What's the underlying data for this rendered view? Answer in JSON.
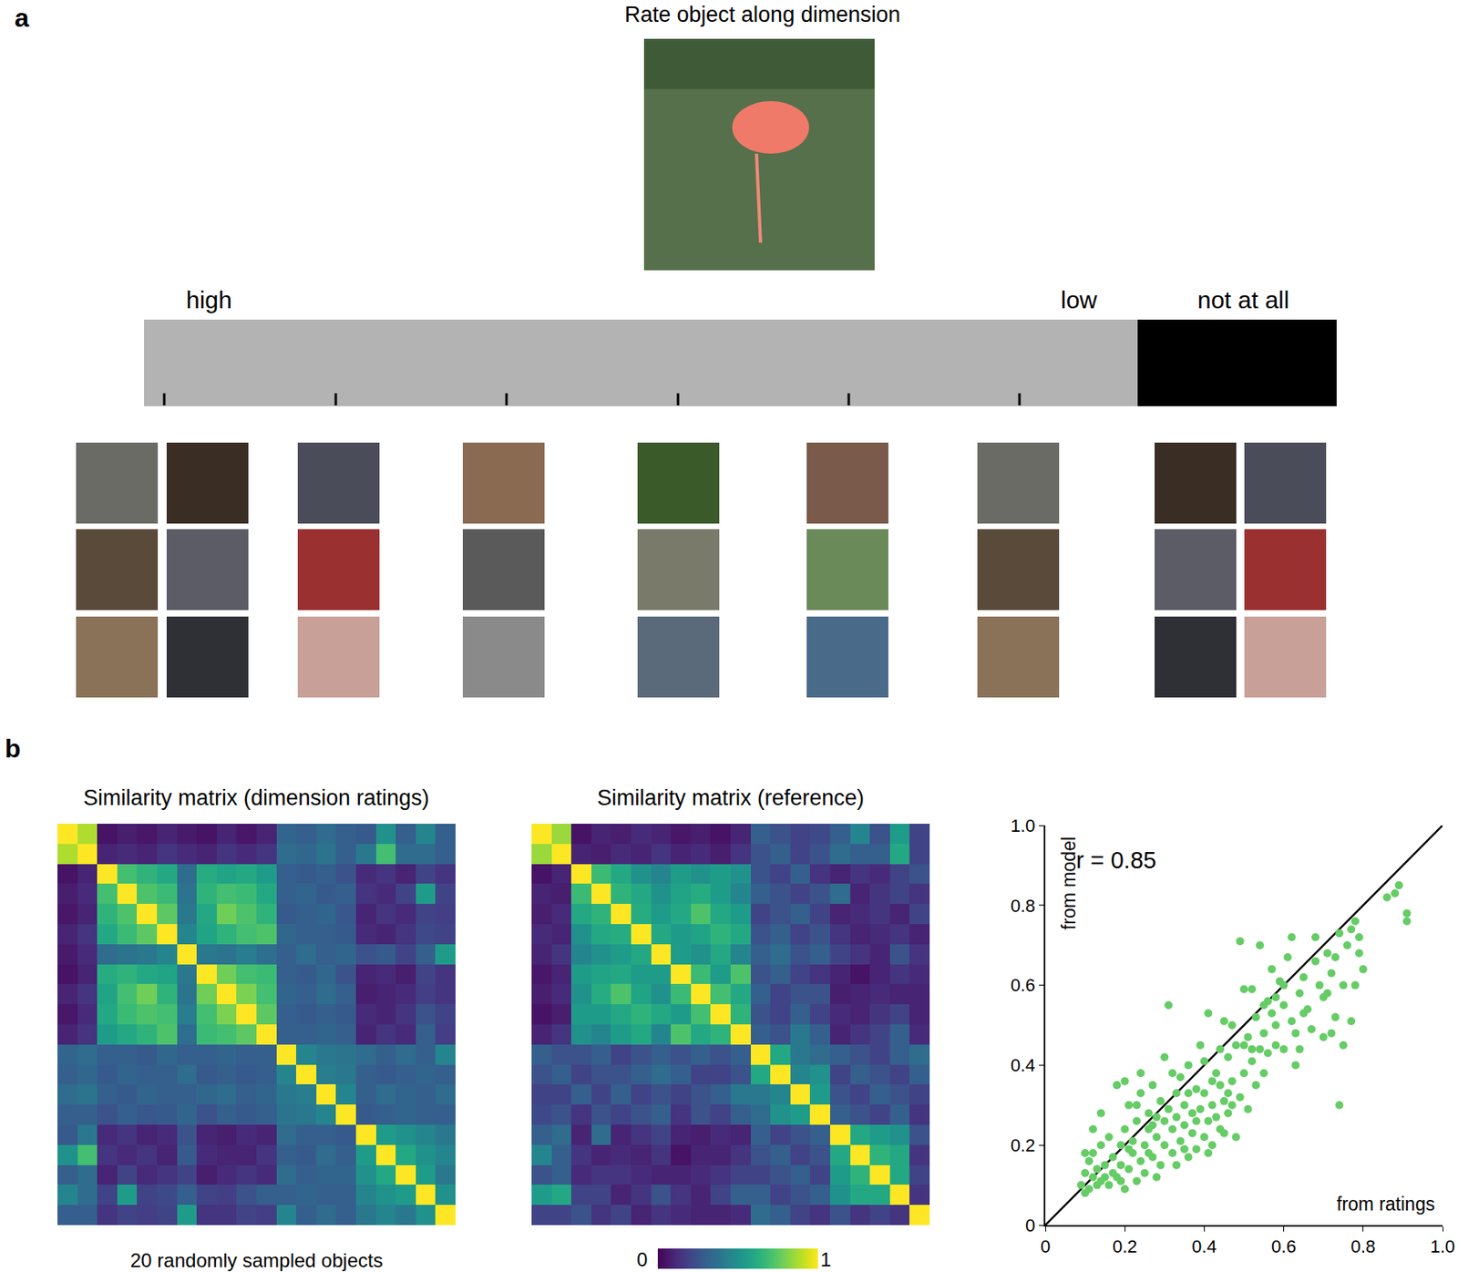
{
  "panel_labels": [
    "a",
    "b"
  ],
  "rating_panel": {
    "title": "Rate object along dimension",
    "scale_labels": [
      "high",
      "low",
      "not at all"
    ]
  },
  "chart_data": [
    {
      "type": "heatmap",
      "title": "Similarity matrix (dimension ratings)",
      "xlabel": "20 randomly sampled objects",
      "tick_labels": false,
      "cells": [
        [
          1,
          0.88,
          0.05,
          0.08,
          0.06,
          0.1,
          0.07,
          0.05,
          0.1,
          0.06,
          0.1,
          0.32,
          0.3,
          0.35,
          0.3,
          0.28,
          0.5,
          0.3,
          0.45,
          0.3
        ],
        [
          0.88,
          1,
          0.1,
          0.12,
          0.1,
          0.15,
          0.12,
          0.1,
          0.15,
          0.12,
          0.15,
          0.35,
          0.33,
          0.38,
          0.3,
          0.4,
          0.7,
          0.35,
          0.35,
          0.3
        ],
        [
          0.05,
          0.1,
          1,
          0.7,
          0.65,
          0.6,
          0.35,
          0.62,
          0.58,
          0.6,
          0.55,
          0.3,
          0.28,
          0.3,
          0.25,
          0.12,
          0.15,
          0.1,
          0.2,
          0.15
        ],
        [
          0.08,
          0.12,
          0.7,
          1,
          0.72,
          0.68,
          0.38,
          0.65,
          0.7,
          0.68,
          0.6,
          0.3,
          0.32,
          0.28,
          0.3,
          0.15,
          0.12,
          0.2,
          0.55,
          0.2
        ],
        [
          0.06,
          0.1,
          0.65,
          0.72,
          1,
          0.75,
          0.4,
          0.6,
          0.78,
          0.72,
          0.65,
          0.28,
          0.3,
          0.32,
          0.27,
          0.1,
          0.15,
          0.12,
          0.2,
          0.18
        ],
        [
          0.1,
          0.15,
          0.6,
          0.68,
          0.75,
          1,
          0.45,
          0.58,
          0.65,
          0.7,
          0.72,
          0.33,
          0.3,
          0.3,
          0.28,
          0.12,
          0.1,
          0.15,
          0.22,
          0.2
        ],
        [
          0.07,
          0.12,
          0.35,
          0.38,
          0.4,
          0.45,
          1,
          0.4,
          0.38,
          0.42,
          0.36,
          0.3,
          0.35,
          0.3,
          0.32,
          0.25,
          0.28,
          0.2,
          0.3,
          0.55
        ],
        [
          0.05,
          0.1,
          0.62,
          0.65,
          0.6,
          0.58,
          0.4,
          1,
          0.78,
          0.7,
          0.68,
          0.3,
          0.28,
          0.33,
          0.25,
          0.1,
          0.12,
          0.08,
          0.2,
          0.15
        ],
        [
          0.1,
          0.15,
          0.58,
          0.7,
          0.78,
          0.65,
          0.38,
          0.78,
          1,
          0.8,
          0.7,
          0.32,
          0.3,
          0.35,
          0.3,
          0.08,
          0.1,
          0.12,
          0.18,
          0.15
        ],
        [
          0.06,
          0.12,
          0.6,
          0.68,
          0.72,
          0.7,
          0.42,
          0.7,
          0.8,
          1,
          0.75,
          0.3,
          0.28,
          0.3,
          0.28,
          0.12,
          0.1,
          0.15,
          0.25,
          0.2
        ],
        [
          0.1,
          0.15,
          0.55,
          0.6,
          0.65,
          0.72,
          0.36,
          0.68,
          0.7,
          0.75,
          1,
          0.3,
          0.3,
          0.32,
          0.3,
          0.1,
          0.15,
          0.12,
          0.3,
          0.18
        ],
        [
          0.32,
          0.35,
          0.3,
          0.3,
          0.28,
          0.33,
          0.3,
          0.3,
          0.32,
          0.3,
          0.3,
          1,
          0.45,
          0.4,
          0.38,
          0.35,
          0.3,
          0.35,
          0.3,
          0.45
        ],
        [
          0.3,
          0.33,
          0.28,
          0.32,
          0.3,
          0.3,
          0.35,
          0.28,
          0.3,
          0.28,
          0.3,
          0.45,
          1,
          0.42,
          0.4,
          0.3,
          0.28,
          0.3,
          0.32,
          0.3
        ],
        [
          0.35,
          0.38,
          0.3,
          0.28,
          0.32,
          0.3,
          0.3,
          0.33,
          0.35,
          0.3,
          0.32,
          0.4,
          0.42,
          1,
          0.45,
          0.3,
          0.35,
          0.32,
          0.3,
          0.35
        ],
        [
          0.3,
          0.3,
          0.25,
          0.3,
          0.27,
          0.28,
          0.32,
          0.25,
          0.3,
          0.28,
          0.3,
          0.38,
          0.4,
          0.45,
          1,
          0.28,
          0.3,
          0.32,
          0.3,
          0.3
        ],
        [
          0.28,
          0.4,
          0.12,
          0.15,
          0.1,
          0.12,
          0.25,
          0.1,
          0.08,
          0.12,
          0.1,
          0.35,
          0.3,
          0.3,
          0.28,
          1,
          0.55,
          0.5,
          0.45,
          0.4
        ],
        [
          0.5,
          0.7,
          0.15,
          0.12,
          0.15,
          0.1,
          0.28,
          0.12,
          0.1,
          0.1,
          0.15,
          0.3,
          0.28,
          0.35,
          0.3,
          0.55,
          1,
          0.6,
          0.5,
          0.45
        ],
        [
          0.3,
          0.35,
          0.1,
          0.2,
          0.12,
          0.15,
          0.2,
          0.08,
          0.12,
          0.15,
          0.12,
          0.35,
          0.3,
          0.32,
          0.32,
          0.5,
          0.6,
          1,
          0.55,
          0.4
        ],
        [
          0.45,
          0.35,
          0.2,
          0.55,
          0.2,
          0.22,
          0.3,
          0.2,
          0.18,
          0.25,
          0.3,
          0.3,
          0.32,
          0.3,
          0.3,
          0.45,
          0.5,
          0.55,
          1,
          0.5
        ],
        [
          0.3,
          0.3,
          0.15,
          0.2,
          0.18,
          0.2,
          0.55,
          0.15,
          0.15,
          0.2,
          0.18,
          0.45,
          0.3,
          0.35,
          0.3,
          0.4,
          0.45,
          0.4,
          0.5,
          1
        ]
      ]
    },
    {
      "type": "heatmap",
      "title": "Similarity matrix (reference)",
      "tick_labels": false,
      "colorbar_range": [
        0,
        1
      ],
      "colorbar_ticks": [
        0,
        1
      ],
      "cells": [
        [
          1,
          0.85,
          0.05,
          0.1,
          0.08,
          0.12,
          0.1,
          0.06,
          0.08,
          0.05,
          0.1,
          0.3,
          0.25,
          0.2,
          0.22,
          0.3,
          0.45,
          0.25,
          0.55,
          0.2
        ],
        [
          0.85,
          1,
          0.1,
          0.08,
          0.12,
          0.1,
          0.15,
          0.1,
          0.12,
          0.08,
          0.15,
          0.25,
          0.3,
          0.2,
          0.25,
          0.35,
          0.3,
          0.3,
          0.6,
          0.2
        ],
        [
          0.05,
          0.1,
          1,
          0.68,
          0.6,
          0.5,
          0.45,
          0.55,
          0.5,
          0.55,
          0.5,
          0.25,
          0.2,
          0.3,
          0.15,
          0.1,
          0.15,
          0.12,
          0.2,
          0.25
        ],
        [
          0.1,
          0.08,
          0.68,
          1,
          0.65,
          0.6,
          0.5,
          0.58,
          0.62,
          0.55,
          0.45,
          0.3,
          0.25,
          0.2,
          0.25,
          0.35,
          0.1,
          0.15,
          0.2,
          0.15
        ],
        [
          0.08,
          0.12,
          0.6,
          0.65,
          1,
          0.62,
          0.55,
          0.6,
          0.72,
          0.6,
          0.55,
          0.2,
          0.25,
          0.3,
          0.2,
          0.1,
          0.12,
          0.15,
          0.1,
          0.2
        ],
        [
          0.12,
          0.1,
          0.5,
          0.6,
          0.62,
          1,
          0.6,
          0.55,
          0.58,
          0.65,
          0.6,
          0.25,
          0.3,
          0.2,
          0.25,
          0.15,
          0.1,
          0.12,
          0.15,
          0.1
        ],
        [
          0.1,
          0.15,
          0.45,
          0.5,
          0.55,
          0.6,
          1,
          0.55,
          0.5,
          0.6,
          0.45,
          0.3,
          0.35,
          0.25,
          0.3,
          0.2,
          0.15,
          0.1,
          0.25,
          0.15
        ],
        [
          0.06,
          0.1,
          0.55,
          0.58,
          0.6,
          0.55,
          0.55,
          1,
          0.68,
          0.55,
          0.72,
          0.25,
          0.3,
          0.2,
          0.15,
          0.1,
          0.05,
          0.1,
          0.15,
          0.12
        ],
        [
          0.08,
          0.12,
          0.5,
          0.62,
          0.72,
          0.58,
          0.5,
          0.68,
          1,
          0.7,
          0.6,
          0.3,
          0.2,
          0.25,
          0.25,
          0.08,
          0.1,
          0.12,
          0.1,
          0.1
        ],
        [
          0.05,
          0.08,
          0.55,
          0.55,
          0.6,
          0.65,
          0.6,
          0.55,
          0.7,
          1,
          0.65,
          0.25,
          0.2,
          0.3,
          0.2,
          0.12,
          0.1,
          0.15,
          0.2,
          0.1
        ],
        [
          0.1,
          0.15,
          0.5,
          0.45,
          0.55,
          0.6,
          0.45,
          0.72,
          0.6,
          0.65,
          1,
          0.3,
          0.25,
          0.4,
          0.3,
          0.1,
          0.15,
          0.2,
          0.3,
          0.12
        ],
        [
          0.3,
          0.25,
          0.25,
          0.3,
          0.2,
          0.25,
          0.3,
          0.25,
          0.3,
          0.25,
          0.3,
          1,
          0.6,
          0.4,
          0.35,
          0.3,
          0.25,
          0.2,
          0.3,
          0.35
        ],
        [
          0.25,
          0.3,
          0.2,
          0.25,
          0.25,
          0.3,
          0.35,
          0.3,
          0.2,
          0.2,
          0.25,
          0.6,
          1,
          0.45,
          0.5,
          0.2,
          0.3,
          0.25,
          0.2,
          0.3
        ],
        [
          0.2,
          0.2,
          0.3,
          0.2,
          0.3,
          0.2,
          0.25,
          0.2,
          0.25,
          0.3,
          0.4,
          0.4,
          0.45,
          1,
          0.55,
          0.25,
          0.2,
          0.3,
          0.25,
          0.2
        ],
        [
          0.22,
          0.25,
          0.15,
          0.25,
          0.2,
          0.25,
          0.3,
          0.15,
          0.25,
          0.2,
          0.3,
          0.35,
          0.5,
          0.55,
          1,
          0.3,
          0.25,
          0.2,
          0.3,
          0.15
        ],
        [
          0.3,
          0.35,
          0.1,
          0.35,
          0.1,
          0.15,
          0.2,
          0.1,
          0.08,
          0.12,
          0.1,
          0.3,
          0.2,
          0.25,
          0.3,
          1,
          0.6,
          0.55,
          0.5,
          0.25
        ],
        [
          0.45,
          0.3,
          0.15,
          0.1,
          0.12,
          0.1,
          0.15,
          0.05,
          0.1,
          0.1,
          0.15,
          0.25,
          0.3,
          0.2,
          0.25,
          0.6,
          1,
          0.65,
          0.6,
          0.15
        ],
        [
          0.25,
          0.3,
          0.12,
          0.15,
          0.15,
          0.12,
          0.1,
          0.1,
          0.12,
          0.15,
          0.2,
          0.2,
          0.25,
          0.3,
          0.2,
          0.55,
          0.65,
          1,
          0.6,
          0.2
        ],
        [
          0.55,
          0.6,
          0.2,
          0.2,
          0.1,
          0.15,
          0.25,
          0.15,
          0.1,
          0.2,
          0.3,
          0.3,
          0.2,
          0.25,
          0.3,
          0.5,
          0.6,
          0.6,
          1,
          0.15
        ],
        [
          0.2,
          0.2,
          0.25,
          0.15,
          0.2,
          0.1,
          0.15,
          0.12,
          0.1,
          0.1,
          0.12,
          0.35,
          0.3,
          0.2,
          0.15,
          0.25,
          0.15,
          0.2,
          0.15,
          1
        ]
      ]
    },
    {
      "type": "scatter",
      "xlabel": "from ratings",
      "ylabel": "from model",
      "annotations": [
        "r = 0.85"
      ],
      "color": "#66cc66",
      "marker": "circle",
      "xlim": [
        0,
        1
      ],
      "ylim": [
        0,
        1
      ],
      "xticks": [
        0,
        0.2,
        0.4,
        0.6,
        0.8,
        {
          "value": 1,
          "label": "1.0"
        }
      ],
      "yticks": [
        0,
        0.2,
        0.4,
        0.6,
        0.8,
        {
          "value": 1,
          "label": "1.0"
        }
      ],
      "x": [
        0.09,
        0.1,
        0.1,
        0.11,
        0.11,
        0.12,
        0.12,
        0.13,
        0.13,
        0.14,
        0.14,
        0.15,
        0.15,
        0.16,
        0.16,
        0.17,
        0.17,
        0.18,
        0.18,
        0.19,
        0.19,
        0.2,
        0.2,
        0.21,
        0.21,
        0.22,
        0.22,
        0.23,
        0.23,
        0.24,
        0.24,
        0.25,
        0.25,
        0.26,
        0.26,
        0.27,
        0.27,
        0.28,
        0.28,
        0.29,
        0.29,
        0.3,
        0.3,
        0.31,
        0.31,
        0.32,
        0.32,
        0.33,
        0.33,
        0.34,
        0.34,
        0.35,
        0.35,
        0.36,
        0.36,
        0.37,
        0.37,
        0.38,
        0.38,
        0.39,
        0.39,
        0.4,
        0.4,
        0.41,
        0.41,
        0.42,
        0.42,
        0.43,
        0.43,
        0.44,
        0.44,
        0.45,
        0.45,
        0.46,
        0.46,
        0.47,
        0.47,
        0.48,
        0.48,
        0.49,
        0.49,
        0.5,
        0.5,
        0.51,
        0.51,
        0.52,
        0.52,
        0.53,
        0.53,
        0.54,
        0.54,
        0.55,
        0.55,
        0.56,
        0.56,
        0.57,
        0.57,
        0.58,
        0.58,
        0.59,
        0.6,
        0.6,
        0.61,
        0.62,
        0.62,
        0.63,
        0.64,
        0.65,
        0.66,
        0.67,
        0.68,
        0.69,
        0.7,
        0.7,
        0.71,
        0.72,
        0.73,
        0.73,
        0.74,
        0.74,
        0.75,
        0.75,
        0.76,
        0.77,
        0.77,
        0.78,
        0.79,
        0.79,
        0.8,
        0.86,
        0.88,
        0.89,
        0.91,
        0.91,
        0.12,
        0.14,
        0.2,
        0.24,
        0.26,
        0.28,
        0.3,
        0.32,
        0.35,
        0.38,
        0.4,
        0.42,
        0.45,
        0.47,
        0.5,
        0.55,
        0.6,
        0.63,
        0.65,
        0.68,
        0.72,
        0.19,
        0.21,
        0.23,
        0.27,
        0.33,
        0.36,
        0.41,
        0.44,
        0.46,
        0.52,
        0.58,
        0.64,
        0.71,
        0.78,
        0.1
      ],
      "y": [
        0.1,
        0.08,
        0.13,
        0.16,
        0.09,
        0.12,
        0.18,
        0.1,
        0.14,
        0.2,
        0.11,
        0.15,
        0.12,
        0.22,
        0.1,
        0.13,
        0.17,
        0.35,
        0.12,
        0.2,
        0.15,
        0.09,
        0.24,
        0.3,
        0.14,
        0.18,
        0.21,
        0.11,
        0.26,
        0.16,
        0.33,
        0.2,
        0.13,
        0.24,
        0.28,
        0.17,
        0.35,
        0.22,
        0.27,
        0.15,
        0.31,
        0.2,
        0.26,
        0.55,
        0.29,
        0.24,
        0.18,
        0.33,
        0.27,
        0.21,
        0.37,
        0.25,
        0.3,
        0.17,
        0.4,
        0.28,
        0.23,
        0.34,
        0.19,
        0.29,
        0.45,
        0.22,
        0.33,
        0.26,
        0.53,
        0.3,
        0.2,
        0.38,
        0.27,
        0.35,
        0.24,
        0.51,
        0.31,
        0.42,
        0.28,
        0.5,
        0.36,
        0.22,
        0.45,
        0.32,
        0.71,
        0.38,
        0.59,
        0.29,
        0.47,
        0.41,
        0.59,
        0.35,
        0.52,
        0.44,
        0.7,
        0.48,
        0.38,
        0.56,
        0.43,
        0.53,
        0.64,
        0.45,
        0.5,
        0.61,
        0.44,
        0.55,
        0.67,
        0.72,
        0.51,
        0.48,
        0.58,
        0.62,
        0.54,
        0.49,
        0.66,
        0.6,
        0.57,
        0.47,
        0.68,
        0.63,
        0.52,
        0.67,
        0.3,
        0.73,
        0.6,
        0.45,
        0.7,
        0.51,
        0.74,
        0.76,
        0.68,
        0.72,
        0.64,
        0.82,
        0.83,
        0.85,
        0.78,
        0.76,
        0.24,
        0.28,
        0.36,
        0.38,
        0.18,
        0.12,
        0.42,
        0.38,
        0.19,
        0.26,
        0.41,
        0.36,
        0.23,
        0.3,
        0.45,
        0.55,
        0.6,
        0.4,
        0.53,
        0.72,
        0.48,
        0.11,
        0.19,
        0.3,
        0.25,
        0.15,
        0.33,
        0.18,
        0.44,
        0.33,
        0.44,
        0.57,
        0.44,
        0.58,
        0.6,
        0.18
      ]
    }
  ]
}
